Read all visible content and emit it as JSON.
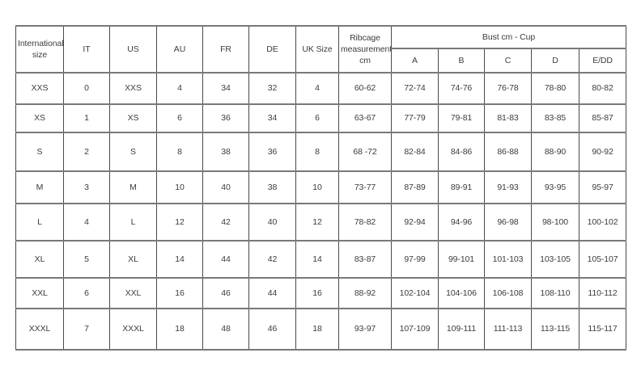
{
  "colors": {
    "background": "#ffffff",
    "border_vertical": "#4a4a4a",
    "border_horizontal": "#787878",
    "text": "#3c3c3c"
  },
  "table": {
    "header": {
      "international_size": "International size",
      "it": "IT",
      "us": "US",
      "au": "AU",
      "fr": "FR",
      "de": "DE",
      "uk_size": "UK Size",
      "ribcage": "Ribcage measurements cm",
      "bust_group_label": "Bust cm - Cup",
      "cups": [
        "A",
        "B",
        "C",
        "D",
        "E/DD"
      ]
    },
    "rows": [
      [
        "XXS",
        "0",
        "XXS",
        "4",
        "34",
        "32",
        "4",
        "60-62",
        "72-74",
        "74-76",
        "76-78",
        "78-80",
        "80-82"
      ],
      [
        "XS",
        "1",
        "XS",
        "6",
        "36",
        "34",
        "6",
        "63-67",
        "77-79",
        "79-81",
        "81-83",
        "83-85",
        "85-87"
      ],
      [
        "S",
        "2",
        "S",
        "8",
        "38",
        "36",
        "8",
        "68 -72",
        "82-84",
        "84-86",
        "86-88",
        "88-90",
        "90-92"
      ],
      [
        "M",
        "3",
        "M",
        "10",
        "40",
        "38",
        "10",
        "73-77",
        "87-89",
        "89-91",
        "91-93",
        "93-95",
        "95-97"
      ],
      [
        "L",
        "4",
        "L",
        "12",
        "42",
        "40",
        "12",
        "78-82",
        "92-94",
        "94-96",
        "96-98",
        "98-100",
        "100-102"
      ],
      [
        "XL",
        "5",
        "XL",
        "14",
        "44",
        "42",
        "14",
        "83-87",
        "97-99",
        "99-101",
        "101-103",
        "103-105",
        "105-107"
      ],
      [
        "XXL",
        "6",
        "XXL",
        "16",
        "46",
        "44",
        "16",
        "88-92",
        "102-104",
        "104-106",
        "106-108",
        "108-110",
        "110-112"
      ],
      [
        "XXXL",
        "7",
        "XXXL",
        "18",
        "48",
        "46",
        "18",
        "93-97",
        "107-109",
        "109-111",
        "111-113",
        "113-115",
        "115-117"
      ]
    ]
  }
}
